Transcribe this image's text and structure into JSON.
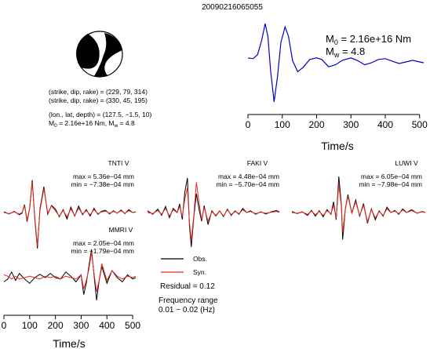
{
  "header": {
    "event_id": "20090216065055"
  },
  "focal_info": {
    "line1": "(strike, dip, rake) = (229, 79, 314)",
    "line2": "(strike, dip, rake) = (330, 45, 195)",
    "line3": "(lon., lat, depth) = (127.5, −1.5, 10)",
    "line4": "M0 = 2.16e+16 Nm, Mw = 4.8",
    "m0_value": "2.16e+16 Nm",
    "mw_value": "4.8",
    "m0_symbol": "M",
    "m0_sub": "0",
    "mw_symbol": "M",
    "mw_sub": "w"
  },
  "legend": {
    "obs_label": "Obs.",
    "syn_label": "Syn.",
    "obs_color": "#000000",
    "syn_color": "#e8281e",
    "residual": "Residual = 0.12",
    "freq_title": "Frequency range",
    "freq_range": "0.01 − 0.02 (Hz)"
  },
  "chart_data": [
    {
      "type": "line",
      "name": "source-time-function",
      "xlabel": "Time/s",
      "xticks": [
        0,
        100,
        200,
        300,
        400,
        500
      ],
      "xlim": [
        0,
        512
      ],
      "annotation_m0": "M0 = 2.16e+16 Nm",
      "annotation_mw": "Mw = 4.8",
      "color": "#0000cc",
      "points": [
        [
          0,
          0.12
        ],
        [
          15,
          0.1
        ],
        [
          28,
          0.2
        ],
        [
          40,
          0.55
        ],
        [
          50,
          0.96
        ],
        [
          58,
          0.65
        ],
        [
          66,
          -0.2
        ],
        [
          76,
          -0.96
        ],
        [
          86,
          -0.35
        ],
        [
          96,
          0.5
        ],
        [
          108,
          0.88
        ],
        [
          118,
          0.65
        ],
        [
          130,
          0.05
        ],
        [
          145,
          -0.22
        ],
        [
          160,
          -0.12
        ],
        [
          180,
          0.08
        ],
        [
          200,
          0.12
        ],
        [
          215,
          0.08
        ],
        [
          235,
          -0.1
        ],
        [
          255,
          -0.05
        ],
        [
          275,
          0.06
        ],
        [
          300,
          0.12
        ],
        [
          320,
          0.05
        ],
        [
          340,
          -0.05
        ],
        [
          360,
          0.0
        ],
        [
          380,
          0.08
        ],
        [
          400,
          0.1
        ],
        [
          420,
          0.04
        ],
        [
          440,
          -0.02
        ],
        [
          460,
          0.02
        ],
        [
          480,
          0.06
        ],
        [
          500,
          0.02
        ],
        [
          512,
          0.0
        ]
      ]
    },
    {
      "type": "line",
      "name": "station-TNTI",
      "station": "TNTI V",
      "max_text": "max = 5.36e−04 mm",
      "min_text": "min = −7.38e−04 mm",
      "obs": [
        [
          0,
          0.02
        ],
        [
          20,
          -0.04
        ],
        [
          40,
          0.03
        ],
        [
          60,
          -0.06
        ],
        [
          70,
          -0.02
        ],
        [
          80,
          0.22
        ],
        [
          90,
          -0.25
        ],
        [
          100,
          0.12
        ],
        [
          110,
          0.9
        ],
        [
          120,
          -0.2
        ],
        [
          130,
          -1.0
        ],
        [
          140,
          0.1
        ],
        [
          155,
          0.72
        ],
        [
          170,
          -0.05
        ],
        [
          185,
          0.2
        ],
        [
          200,
          0.1
        ],
        [
          215,
          -0.12
        ],
        [
          230,
          0.08
        ],
        [
          245,
          -0.18
        ],
        [
          260,
          0.15
        ],
        [
          275,
          -0.1
        ],
        [
          290,
          0.18
        ],
        [
          305,
          -0.06
        ],
        [
          320,
          0.08
        ],
        [
          335,
          -0.1
        ],
        [
          350,
          0.12
        ],
        [
          365,
          -0.05
        ],
        [
          380,
          0.04
        ],
        [
          395,
          0.06
        ],
        [
          410,
          -0.04
        ],
        [
          425,
          0.05
        ],
        [
          440,
          -0.02
        ],
        [
          455,
          0.07
        ],
        [
          470,
          -0.03
        ],
        [
          485,
          0.08
        ],
        [
          500,
          0.0
        ],
        [
          512,
          0.02
        ]
      ],
      "syn": [
        [
          0,
          0.0
        ],
        [
          20,
          -0.03
        ],
        [
          40,
          0.02
        ],
        [
          60,
          -0.04
        ],
        [
          70,
          0.0
        ],
        [
          80,
          0.18
        ],
        [
          90,
          -0.2
        ],
        [
          100,
          0.1
        ],
        [
          110,
          0.84
        ],
        [
          120,
          -0.15
        ],
        [
          130,
          -0.92
        ],
        [
          140,
          0.05
        ],
        [
          155,
          0.66
        ],
        [
          170,
          -0.02
        ],
        [
          185,
          0.18
        ],
        [
          200,
          0.05
        ],
        [
          215,
          -0.1
        ],
        [
          230,
          0.06
        ],
        [
          245,
          -0.12
        ],
        [
          260,
          0.1
        ],
        [
          275,
          -0.08
        ],
        [
          290,
          0.12
        ],
        [
          305,
          -0.04
        ],
        [
          320,
          0.05
        ],
        [
          335,
          -0.06
        ],
        [
          350,
          0.08
        ],
        [
          365,
          -0.03
        ],
        [
          380,
          0.02
        ],
        [
          395,
          0.04
        ],
        [
          410,
          -0.02
        ],
        [
          425,
          0.03
        ],
        [
          440,
          -0.01
        ],
        [
          455,
          0.05
        ],
        [
          470,
          -0.02
        ],
        [
          485,
          0.05
        ],
        [
          500,
          0.0
        ],
        [
          512,
          0.01
        ]
      ]
    },
    {
      "type": "line",
      "name": "station-FAKI",
      "station": "FAKI V",
      "max_text": "max = 4.48e−04 mm",
      "min_text": "min = −5.70e−04 mm",
      "obs": [
        [
          0,
          0.05
        ],
        [
          20,
          -0.05
        ],
        [
          40,
          0.1
        ],
        [
          55,
          -0.08
        ],
        [
          70,
          0.18
        ],
        [
          85,
          -0.15
        ],
        [
          100,
          0.12
        ],
        [
          115,
          0.0
        ],
        [
          125,
          0.25
        ],
        [
          135,
          -0.2
        ],
        [
          145,
          0.6
        ],
        [
          155,
          1.0
        ],
        [
          163,
          -0.4
        ],
        [
          170,
          -1.0
        ],
        [
          180,
          -0.1
        ],
        [
          190,
          0.55
        ],
        [
          200,
          0.1
        ],
        [
          210,
          -0.25
        ],
        [
          220,
          0.2
        ],
        [
          235,
          -0.35
        ],
        [
          250,
          0.05
        ],
        [
          265,
          -0.1
        ],
        [
          280,
          0.05
        ],
        [
          295,
          -0.12
        ],
        [
          310,
          0.1
        ],
        [
          325,
          -0.08
        ],
        [
          340,
          0.05
        ],
        [
          355,
          -0.05
        ],
        [
          370,
          0.12
        ],
        [
          385,
          0.0
        ],
        [
          400,
          0.05
        ],
        [
          420,
          -0.05
        ],
        [
          440,
          0.02
        ],
        [
          460,
          -0.04
        ],
        [
          480,
          0.02
        ],
        [
          500,
          0.06
        ],
        [
          512,
          0.02
        ]
      ],
      "syn": [
        [
          0,
          0.0
        ],
        [
          20,
          -0.03
        ],
        [
          40,
          0.06
        ],
        [
          55,
          -0.05
        ],
        [
          70,
          0.12
        ],
        [
          85,
          -0.1
        ],
        [
          100,
          0.08
        ],
        [
          115,
          0.0
        ],
        [
          125,
          0.18
        ],
        [
          135,
          -0.12
        ],
        [
          145,
          0.4
        ],
        [
          155,
          0.72
        ],
        [
          163,
          -0.3
        ],
        [
          170,
          -0.82
        ],
        [
          180,
          -0.05
        ],
        [
          190,
          0.88
        ],
        [
          200,
          0.3
        ],
        [
          210,
          -0.2
        ],
        [
          220,
          0.15
        ],
        [
          235,
          -0.25
        ],
        [
          250,
          0.02
        ],
        [
          265,
          -0.08
        ],
        [
          280,
          0.04
        ],
        [
          295,
          -0.1
        ],
        [
          310,
          0.08
        ],
        [
          325,
          -0.06
        ],
        [
          340,
          0.03
        ],
        [
          355,
          -0.03
        ],
        [
          370,
          0.08
        ],
        [
          385,
          0.0
        ],
        [
          400,
          0.03
        ],
        [
          420,
          -0.03
        ],
        [
          440,
          0.01
        ],
        [
          460,
          -0.02
        ],
        [
          480,
          0.01
        ],
        [
          500,
          0.03
        ],
        [
          512,
          0.01
        ]
      ]
    },
    {
      "type": "line",
      "name": "station-LUWI",
      "station": "LUWI V",
      "max_text": "max = 6.05e−04 mm",
      "min_text": "min = −7.98e−04 mm",
      "obs": [
        [
          0,
          0.03
        ],
        [
          20,
          -0.03
        ],
        [
          40,
          0.02
        ],
        [
          60,
          -0.08
        ],
        [
          75,
          0.06
        ],
        [
          90,
          -0.1
        ],
        [
          105,
          0.05
        ],
        [
          120,
          -0.12
        ],
        [
          135,
          0.08
        ],
        [
          150,
          -0.05
        ],
        [
          160,
          0.3
        ],
        [
          170,
          -0.2
        ],
        [
          180,
          1.0
        ],
        [
          190,
          0.2
        ],
        [
          195,
          -0.75
        ],
        [
          205,
          0.1
        ],
        [
          215,
          0.5
        ],
        [
          230,
          -0.02
        ],
        [
          245,
          0.35
        ],
        [
          260,
          -0.1
        ],
        [
          275,
          0.25
        ],
        [
          290,
          -0.3
        ],
        [
          305,
          0.1
        ],
        [
          320,
          -0.2
        ],
        [
          335,
          0.05
        ],
        [
          350,
          -0.1
        ],
        [
          365,
          0.15
        ],
        [
          380,
          0.0
        ],
        [
          395,
          0.06
        ],
        [
          410,
          -0.05
        ],
        [
          425,
          0.1
        ],
        [
          440,
          0.0
        ],
        [
          460,
          0.08
        ],
        [
          480,
          -0.02
        ],
        [
          500,
          0.03
        ],
        [
          512,
          0.0
        ]
      ],
      "syn": [
        [
          0,
          0.0
        ],
        [
          20,
          -0.02
        ],
        [
          40,
          0.01
        ],
        [
          60,
          -0.05
        ],
        [
          75,
          0.04
        ],
        [
          90,
          -0.06
        ],
        [
          105,
          0.03
        ],
        [
          120,
          -0.08
        ],
        [
          135,
          0.05
        ],
        [
          150,
          -0.03
        ],
        [
          160,
          0.2
        ],
        [
          170,
          -0.15
        ],
        [
          180,
          0.78
        ],
        [
          190,
          0.15
        ],
        [
          195,
          -0.55
        ],
        [
          205,
          0.1
        ],
        [
          215,
          0.45
        ],
        [
          230,
          -0.02
        ],
        [
          245,
          0.3
        ],
        [
          260,
          -0.08
        ],
        [
          275,
          0.2
        ],
        [
          290,
          -0.25
        ],
        [
          305,
          0.08
        ],
        [
          320,
          -0.15
        ],
        [
          335,
          0.03
        ],
        [
          350,
          -0.08
        ],
        [
          365,
          0.1
        ],
        [
          380,
          0.0
        ],
        [
          395,
          0.04
        ],
        [
          410,
          -0.03
        ],
        [
          425,
          0.07
        ],
        [
          440,
          0.0
        ],
        [
          460,
          0.05
        ],
        [
          480,
          -0.01
        ],
        [
          500,
          0.02
        ],
        [
          512,
          0.0
        ]
      ]
    },
    {
      "type": "line",
      "name": "station-MMRI",
      "station": "MMRI V",
      "max_text": "max = 2.05e−04 mm",
      "min_text": "min = −1.79e−04 mm",
      "xlabel": "Time/s",
      "xticks": [
        0,
        100,
        200,
        300,
        400,
        500
      ],
      "xlim": [
        0,
        512
      ],
      "obs": [
        [
          0,
          -0.15
        ],
        [
          15,
          -0.05
        ],
        [
          30,
          0.2
        ],
        [
          45,
          -0.1
        ],
        [
          60,
          0.15
        ],
        [
          80,
          -0.05
        ],
        [
          100,
          -0.2
        ],
        [
          120,
          0.0
        ],
        [
          140,
          0.12
        ],
        [
          160,
          0.0
        ],
        [
          180,
          0.15
        ],
        [
          200,
          0.0
        ],
        [
          220,
          -0.05
        ],
        [
          240,
          0.2
        ],
        [
          260,
          0.05
        ],
        [
          280,
          -0.15
        ],
        [
          300,
          0.1
        ],
        [
          310,
          -0.6
        ],
        [
          320,
          -0.2
        ],
        [
          330,
          0.4
        ],
        [
          340,
          1.0
        ],
        [
          350,
          0.1
        ],
        [
          360,
          -0.8
        ],
        [
          370,
          -0.1
        ],
        [
          380,
          0.4
        ],
        [
          390,
          0.1
        ],
        [
          400,
          -0.2
        ],
        [
          420,
          0.25
        ],
        [
          440,
          0.0
        ],
        [
          460,
          -0.15
        ],
        [
          480,
          0.1
        ],
        [
          500,
          -0.05
        ],
        [
          512,
          0.0
        ]
      ],
      "syn": [
        [
          0,
          0.1
        ],
        [
          15,
          0.05
        ],
        [
          30,
          -0.05
        ],
        [
          45,
          0.05
        ],
        [
          60,
          -0.05
        ],
        [
          80,
          0.0
        ],
        [
          100,
          0.05
        ],
        [
          120,
          0.0
        ],
        [
          140,
          -0.05
        ],
        [
          160,
          0.05
        ],
        [
          180,
          0.0
        ],
        [
          200,
          0.05
        ],
        [
          220,
          -0.05
        ],
        [
          240,
          0.05
        ],
        [
          260,
          0.0
        ],
        [
          280,
          -0.05
        ],
        [
          300,
          0.1
        ],
        [
          310,
          -0.4
        ],
        [
          320,
          -0.1
        ],
        [
          330,
          0.3
        ],
        [
          340,
          0.9
        ],
        [
          350,
          0.15
        ],
        [
          360,
          -0.5
        ],
        [
          370,
          -0.1
        ],
        [
          380,
          0.5
        ],
        [
          390,
          0.2
        ],
        [
          400,
          -0.1
        ],
        [
          420,
          0.25
        ],
        [
          440,
          0.05
        ],
        [
          460,
          -0.05
        ],
        [
          480,
          0.05
        ],
        [
          500,
          0.0
        ],
        [
          512,
          0.05
        ]
      ]
    }
  ]
}
